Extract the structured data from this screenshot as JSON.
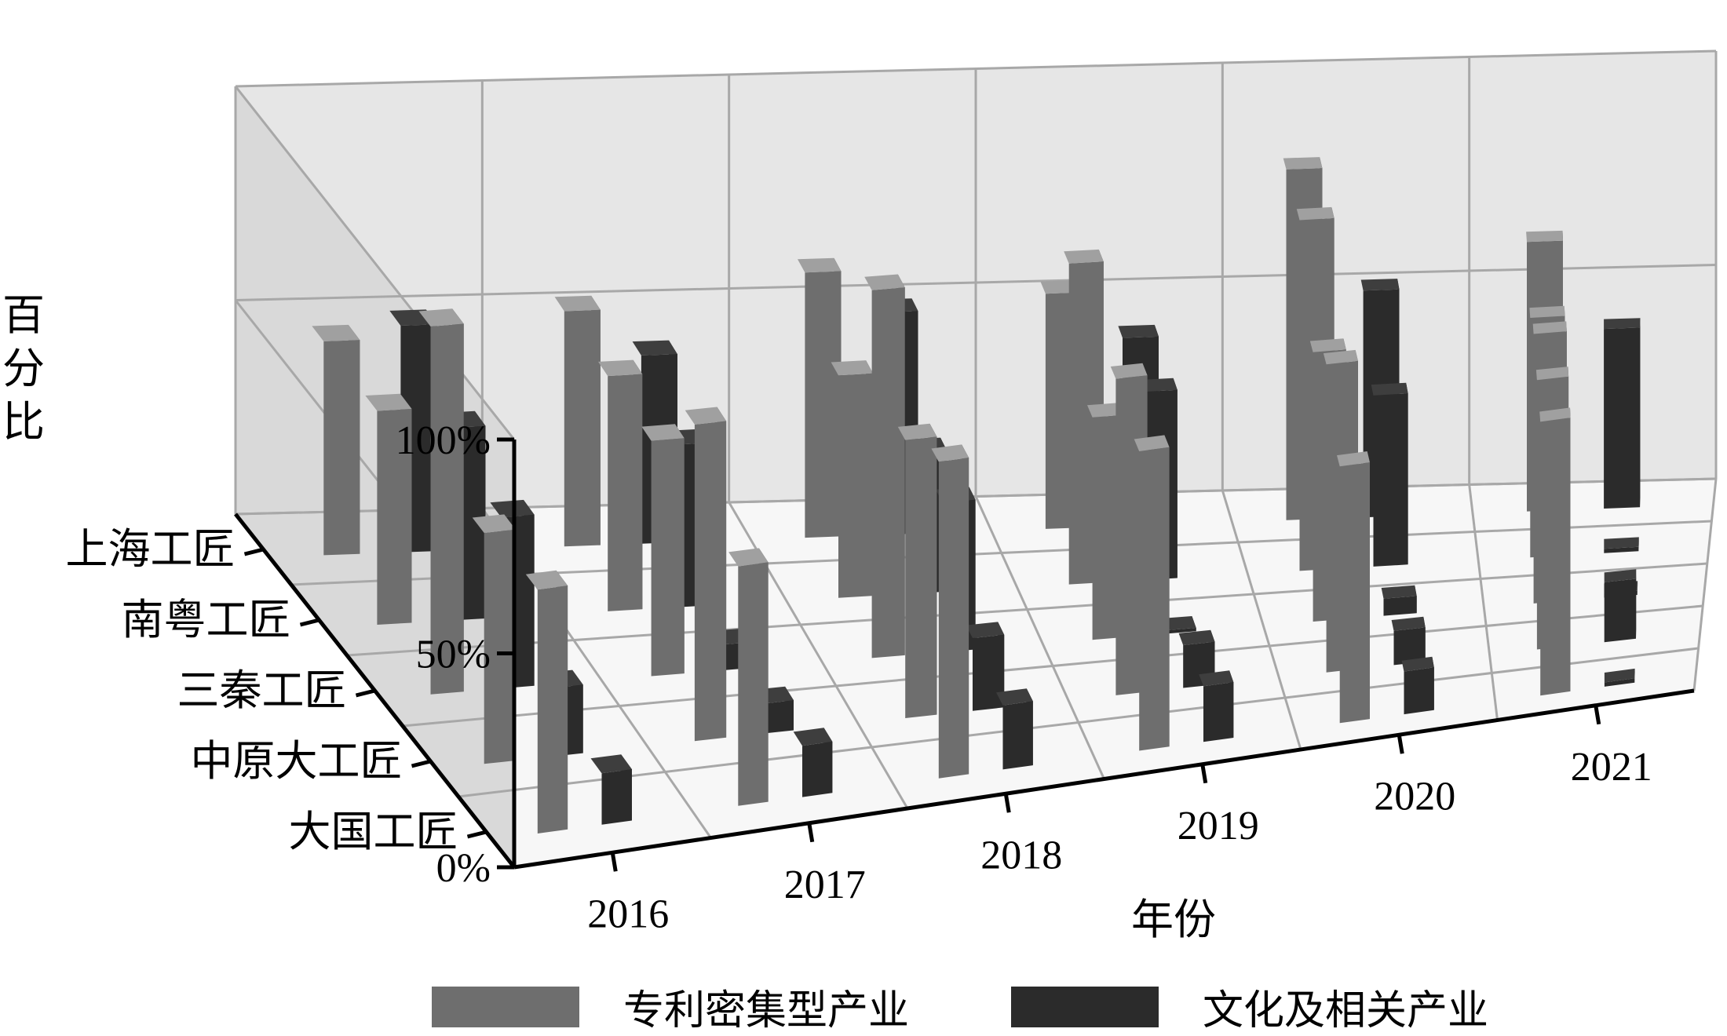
{
  "chart_data": {
    "type": "bar",
    "title": "",
    "xlabel": "年份",
    "ylabel": "百分比",
    "zlabels": [
      "上海工匠",
      "南粤工匠",
      "三秦工匠",
      "中原大工匠",
      "大国工匠"
    ],
    "categories": [
      "2016",
      "2017",
      "2018",
      "2019",
      "2020",
      "2021"
    ],
    "yticks": [
      "0%",
      "50%",
      "100%"
    ],
    "ylim": [
      0,
      100
    ],
    "grid": true,
    "legend_position": "bottom",
    "series": [
      {
        "name": "专利密集型产业",
        "color": "#6e6e6e",
        "values": {
          "上海工匠": [
            50,
            55,
            62,
            55,
            82,
            63
          ],
          "南粤工匠": [
            50,
            55,
            52,
            75,
            82,
            56
          ],
          "三秦工匠": [
            86,
            55,
            86,
            52,
            63,
            63
          ],
          "中原大工匠": [
            54,
            74,
            65,
            74,
            72,
            63
          ],
          "大国工匠": [
            57,
            56,
            74,
            70,
            60,
            64
          ]
        }
      },
      {
        "name": "文化及相关产业",
        "color": "#2b2b2b",
        "values": {
          "上海工匠": [
            53,
            44,
            52,
            44,
            53,
            42
          ],
          "南粤工匠": [
            45,
            38,
            33,
            44,
            40,
            1
          ],
          "三秦工匠": [
            40,
            6,
            35,
            0,
            4,
            1
          ],
          "中原大工匠": [
            16,
            7,
            17,
            10,
            8,
            14
          ],
          "大国工匠": [
            12,
            12,
            15,
            13,
            10,
            1
          ]
        }
      }
    ]
  }
}
